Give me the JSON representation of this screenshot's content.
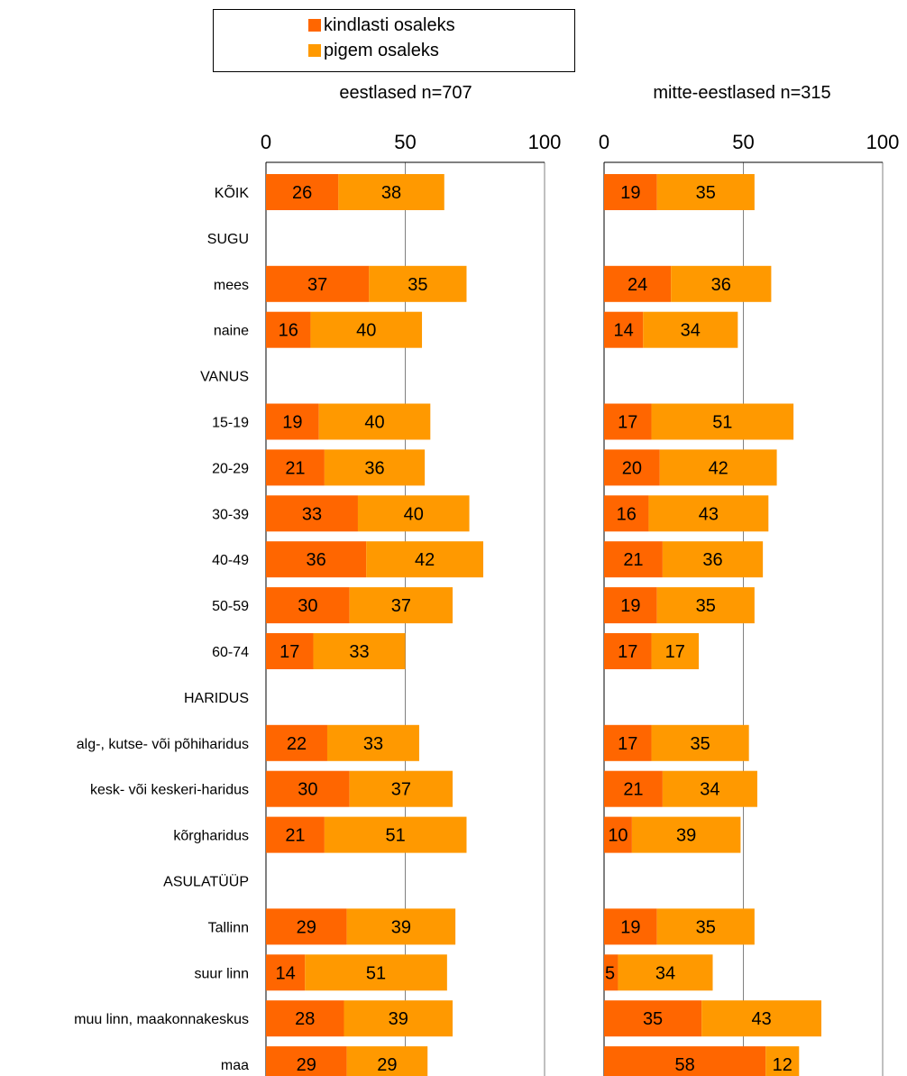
{
  "chart_data": {
    "type": "bar",
    "stacked": true,
    "orientation": "horizontal",
    "legend": {
      "placement": "top",
      "items": [
        {
          "name": "kindlasti osaleks",
          "color": "#FF6600"
        },
        {
          "name": "pigem osaleks",
          "color": "#FF9900"
        }
      ]
    },
    "categories": [
      "KÕIK",
      "SUGU",
      "mees",
      "naine",
      "VANUS",
      "15-19",
      "20-29",
      "30-39",
      "40-49",
      "50-59",
      "60-74",
      "HARIDUS",
      "alg-, kutse- või põhiharidus",
      "kesk- või keskeri-haridus",
      "kõrgharidus",
      "ASULATÜÜP",
      "Tallinn",
      "suur linn",
      "muu linn, maakonnakeskus",
      "maa"
    ],
    "xlim": [
      0,
      100
    ],
    "xticks": [
      0,
      50,
      100
    ],
    "grid": true,
    "panels": [
      {
        "title": "eestlased n=707",
        "series": [
          {
            "name": "kindlasti osaleks",
            "values": [
              26,
              null,
              37,
              16,
              null,
              19,
              21,
              33,
              36,
              30,
              17,
              null,
              22,
              30,
              21,
              null,
              29,
              14,
              28,
              29
            ]
          },
          {
            "name": "pigem osaleks",
            "values": [
              38,
              null,
              35,
              40,
              null,
              40,
              36,
              40,
              42,
              37,
              33,
              null,
              33,
              37,
              51,
              null,
              39,
              51,
              39,
              29
            ]
          }
        ]
      },
      {
        "title": "mitte-eestlased n=315",
        "series": [
          {
            "name": "kindlasti osaleks",
            "values": [
              19,
              null,
              24,
              14,
              null,
              17,
              20,
              16,
              21,
              19,
              17,
              null,
              17,
              21,
              10,
              null,
              19,
              5,
              35,
              58
            ]
          },
          {
            "name": "pigem osaleks",
            "values": [
              35,
              null,
              36,
              34,
              null,
              51,
              42,
              43,
              36,
              35,
              17,
              null,
              35,
              34,
              39,
              null,
              35,
              34,
              43,
              12
            ]
          }
        ]
      }
    ]
  }
}
